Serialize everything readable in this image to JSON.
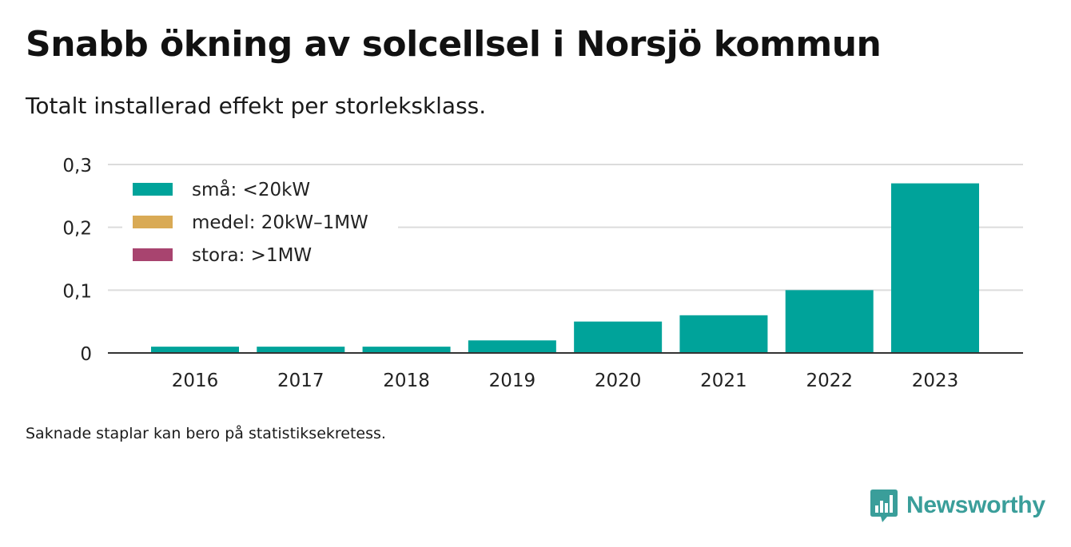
{
  "title": "Snabb ökning av solcellsel i Norsjö kommun",
  "subtitle": "Totalt installerad effekt per storleksklass.",
  "footnote": "Saknade staplar kan bero på statistiksekretess.",
  "brand": "Newsworthy",
  "chart_data": {
    "type": "bar",
    "stacked": true,
    "categories": [
      "2016",
      "2017",
      "2018",
      "2019",
      "2020",
      "2021",
      "2022",
      "2023"
    ],
    "series": [
      {
        "name": "små: <20kW",
        "color": "#00a39a",
        "values": [
          0.01,
          0.01,
          0.01,
          0.02,
          0.05,
          0.06,
          0.1,
          0.27
        ]
      },
      {
        "name": "medel: 20kW–1MW",
        "color": "#d9aa55",
        "values": [
          0,
          0,
          0,
          0,
          0,
          0,
          0,
          0
        ]
      },
      {
        "name": "stora: >1MW",
        "color": "#a8446f",
        "values": [
          0,
          0,
          0,
          0,
          0,
          0,
          0,
          0
        ]
      }
    ],
    "ylim": [
      0,
      0.3
    ],
    "yticks": [
      "0",
      "0,1",
      "0,2",
      "0,3"
    ],
    "ytick_values": [
      0,
      0.1,
      0.2,
      0.3
    ],
    "legend_position": "top-left",
    "grid": true
  }
}
